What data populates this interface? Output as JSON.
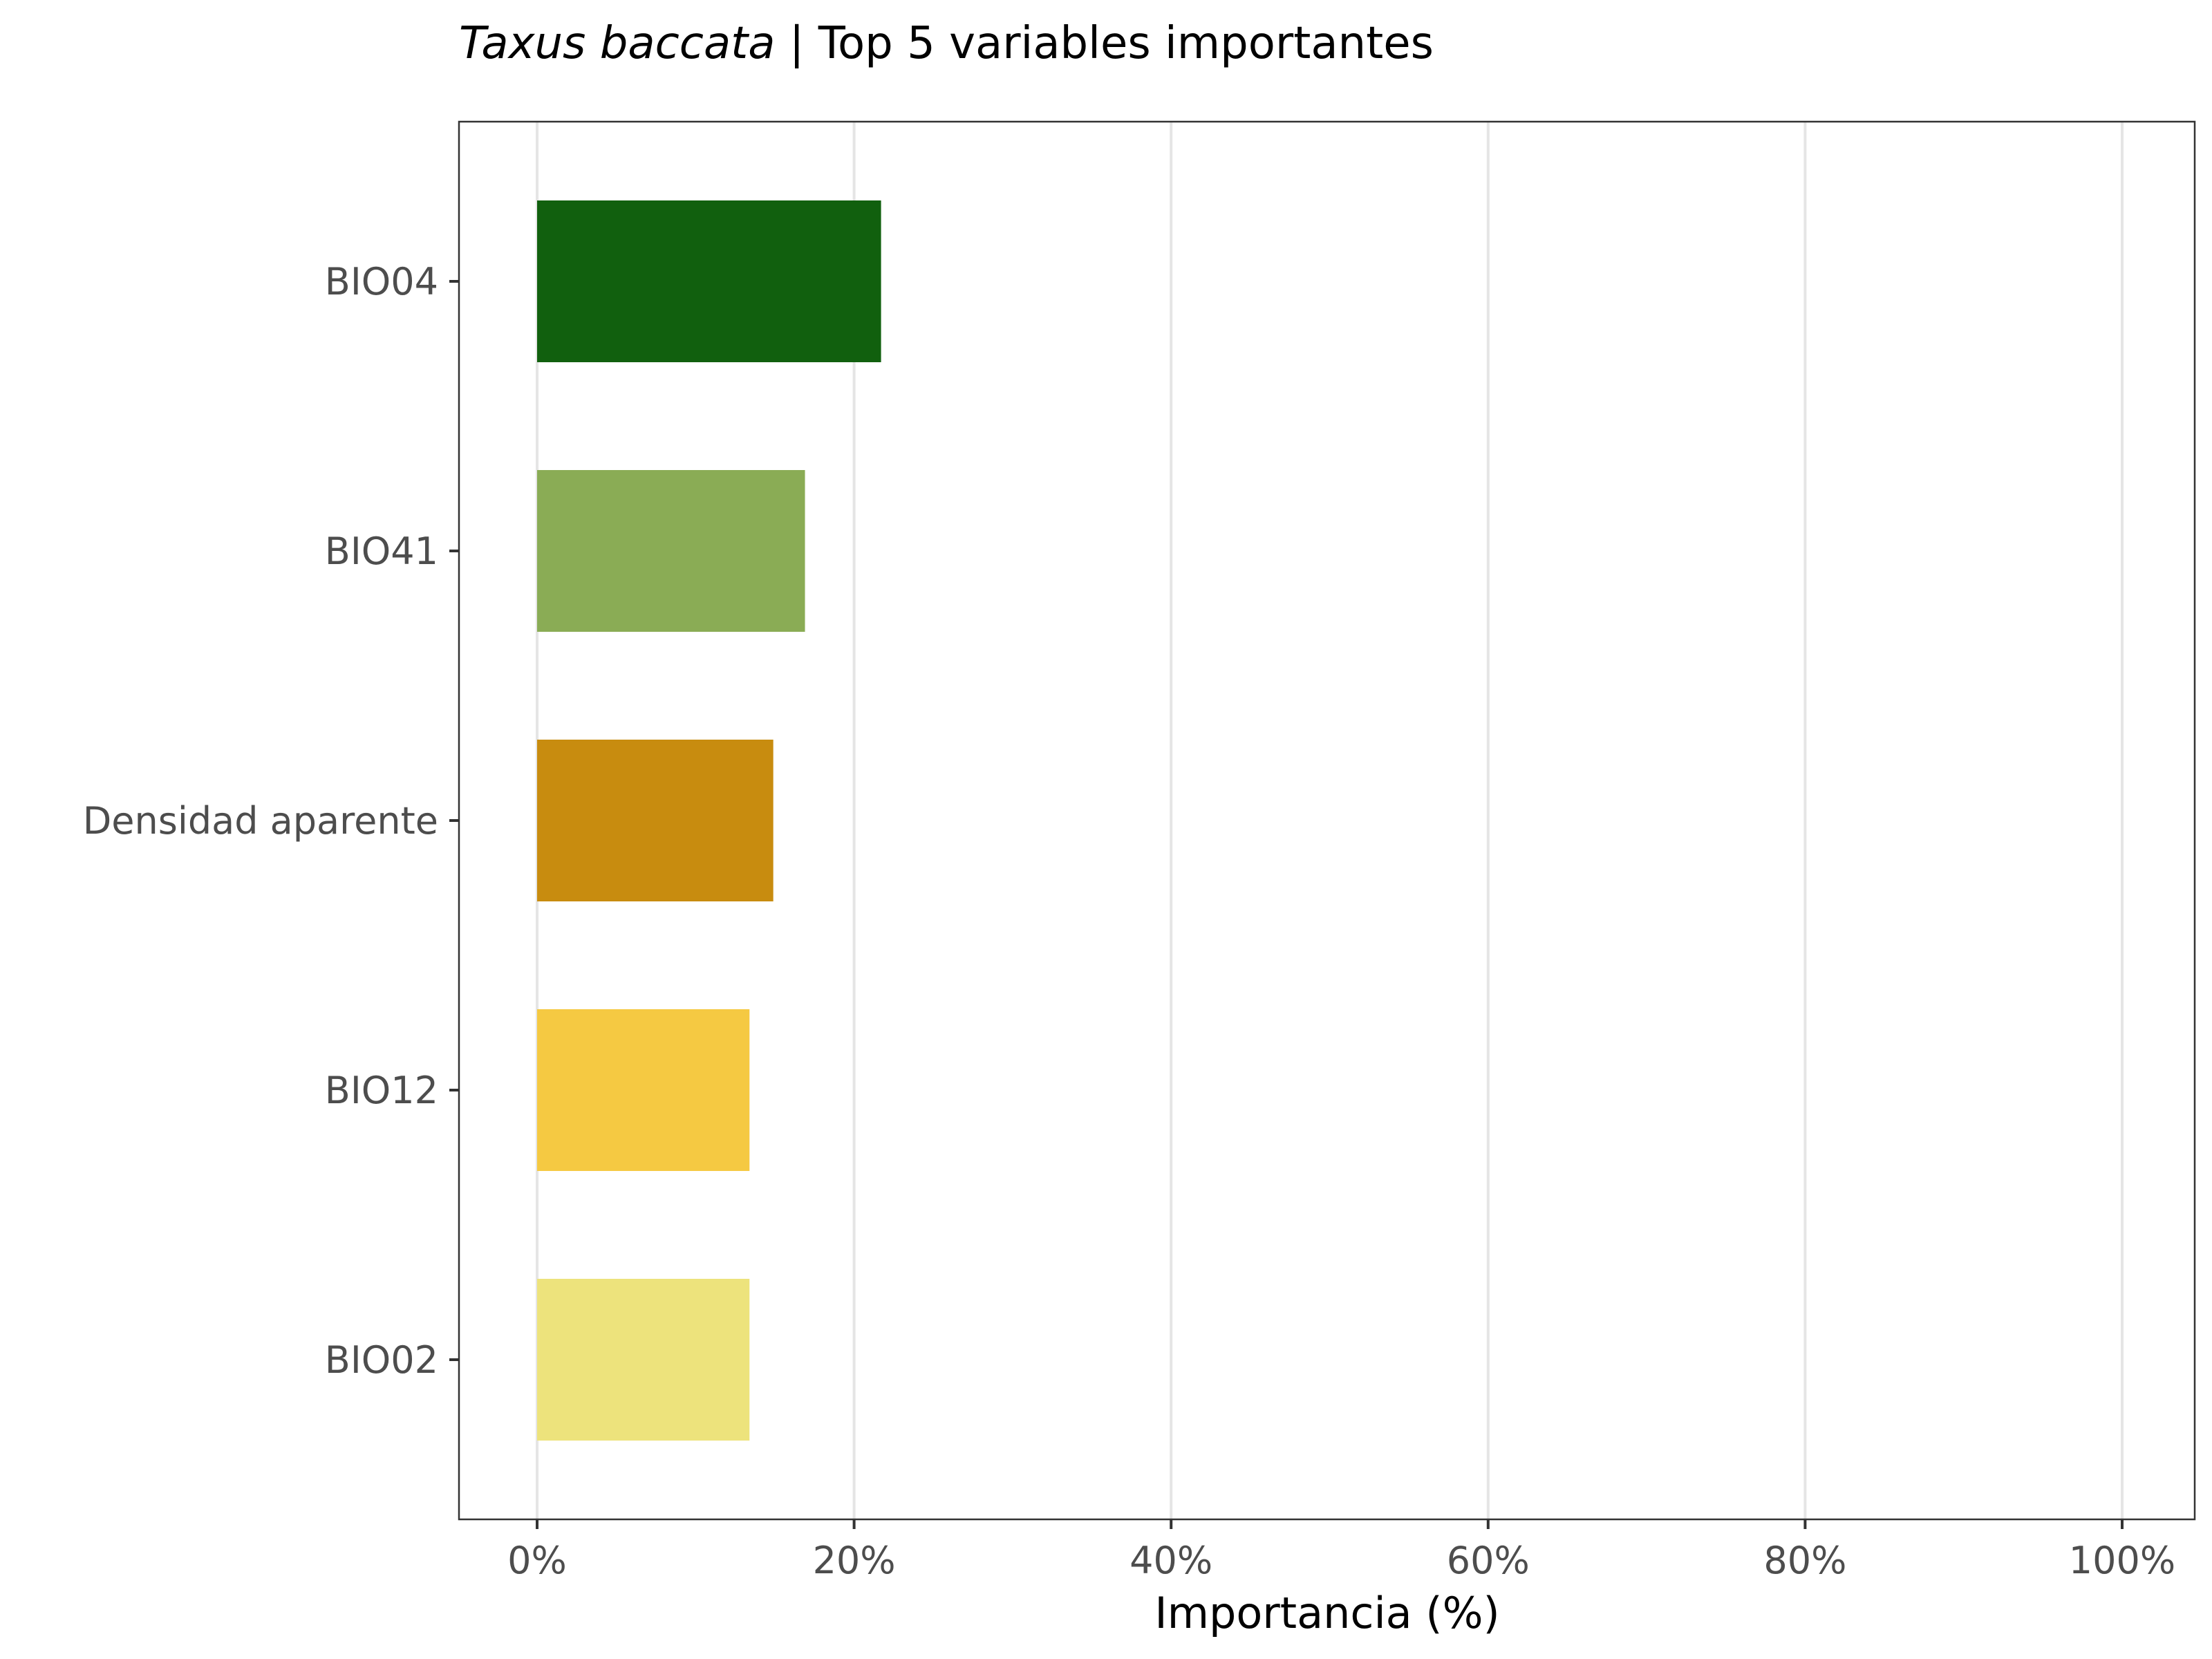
{
  "chart_data": {
    "type": "bar",
    "orientation": "horizontal",
    "title": {
      "species": "Taxus baccata",
      "rest": " | Top 5 variables importantes"
    },
    "xlabel": "Importancia (%)",
    "ylabel": "",
    "xlim": [
      0,
      100
    ],
    "x_ticks": [
      0,
      20,
      40,
      60,
      80,
      100
    ],
    "x_tick_labels": [
      "0%",
      "20%",
      "40%",
      "60%",
      "80%",
      "100%"
    ],
    "categories": [
      "BIO04",
      "BIO41",
      "Densidad aparente",
      "BIO12",
      "BIO02"
    ],
    "values": [
      21.7,
      16.9,
      14.9,
      13.4,
      13.4
    ],
    "colors": [
      "#11600e",
      "#8aac55",
      "#c88c0f",
      "#f5c942",
      "#ede37c"
    ],
    "grid": "vertical major",
    "legend": "none"
  }
}
